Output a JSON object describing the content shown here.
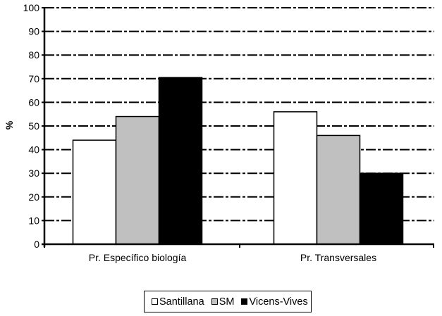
{
  "chart_data": {
    "type": "bar",
    "title": "",
    "xlabel": "",
    "ylabel": "%",
    "ylim": [
      0,
      100
    ],
    "yticks": [
      0,
      10,
      20,
      30,
      40,
      50,
      60,
      70,
      80,
      90,
      100
    ],
    "grid": true,
    "grid_style": "dash-dot",
    "legend_position": "bottom",
    "categories": [
      "Pr. Específico biología",
      "Pr. Transversales"
    ],
    "series": [
      {
        "name": "Santillana",
        "color": "#ffffff",
        "values": [
          44,
          56
        ]
      },
      {
        "name": "SM",
        "color": "#c0c0c0",
        "values": [
          54,
          46
        ]
      },
      {
        "name": "Vicens-Vives",
        "color": "#000000",
        "values": [
          70.5,
          30
        ]
      }
    ]
  },
  "legend": {
    "items": [
      {
        "label": "Santillana",
        "color": "#ffffff"
      },
      {
        "label": "SM",
        "color": "#c0c0c0"
      },
      {
        "label": "Vicens-Vives",
        "color": "#000000"
      }
    ]
  }
}
